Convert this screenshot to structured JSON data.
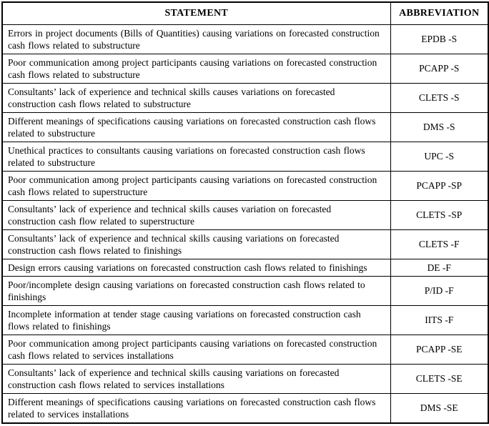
{
  "page": {
    "background_color": "#ffffff",
    "text_color": "#000000",
    "border_color": "#000000"
  },
  "table": {
    "headers": [
      {
        "label": "STATEMENT"
      },
      {
        "label": "ABBREVIATION"
      }
    ],
    "rows": [
      {
        "statement": "Errors in project documents (Bills of Quantities) causing variations on forecasted construction cash flows related to substructure",
        "abbreviation": "EPDB -S"
      },
      {
        "statement": "Poor communication among project participants causing variations on forecasted construction cash flows related to substructure",
        "abbreviation": "PCAPP -S"
      },
      {
        "statement": "Consultants’ lack of experience and technical skills causes variations on forecasted construction cash flows related to substructure",
        "abbreviation": "CLETS -S"
      },
      {
        "statement": "Different meanings of specifications causing variations on forecasted construction cash flows related to substructure",
        "abbreviation": "DMS -S"
      },
      {
        "statement": "Unethical practices to consultants causing variations on forecasted construction cash flows related to substructure",
        "abbreviation": "UPC -S"
      },
      {
        "statement": "Poor communication among project participants causing variations on forecasted construction cash flows related to superstructure",
        "abbreviation": "PCAPP -SP"
      },
      {
        "statement": "Consultants’ lack of experience and technical skills causes variation on forecasted construction cash flow related to superstructure",
        "abbreviation": "CLETS -SP"
      },
      {
        "statement": "Consultants’ lack of experience and technical skills causing variations on forecasted construction cash flows related to finishings",
        "abbreviation": "CLETS -F"
      },
      {
        "statement": "Design errors causing variations on forecasted construction cash flows related to finishings",
        "abbreviation": "DE -F"
      },
      {
        "statement": "Poor/incomplete design causing variations on forecasted construction cash flows related to finishings",
        "abbreviation": "P/ID -F"
      },
      {
        "statement": "Incomplete information at tender stage causing variations on forecasted construction cash flows related to finishings",
        "abbreviation": "IITS -F"
      },
      {
        "statement": "Poor communication among project participants causing variations on forecasted construction cash flows related to services installations",
        "abbreviation": "PCAPP -SE"
      },
      {
        "statement": "Consultants’ lack of experience and technical skills causing variations on forecasted construction cash flows related to services installations",
        "abbreviation": "CLETS -SE"
      },
      {
        "statement": "Different meanings of specifications causing variations on forecasted construction cash flows related to services installations",
        "abbreviation": "DMS -SE"
      }
    ]
  }
}
